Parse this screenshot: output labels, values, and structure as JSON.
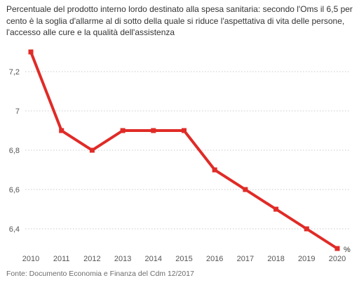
{
  "chart_data": {
    "type": "line",
    "title": "Percentuale del prodotto interno lordo destinato alla spesa sanitaria: secondo l'Oms il 6,5 per cento è la soglia d'allarme al di sotto della quale si riduce l'aspettativa di vita delle persone, l'accesso alle cure e la qualità dell'assistenza",
    "source": "Fonte: Documento Economia e Finanza del Cdm 12/2017",
    "unit_label": "%",
    "x": [
      2010,
      2011,
      2012,
      2013,
      2014,
      2015,
      2016,
      2017,
      2018,
      2019,
      2020
    ],
    "x_tick_labels": [
      "2010",
      "2011",
      "2012",
      "2013",
      "2014",
      "2015",
      "2016",
      "2017",
      "2018",
      "2019",
      "2020"
    ],
    "series": [
      {
        "values": [
          7.3,
          6.9,
          6.8,
          6.9,
          6.9,
          6.9,
          6.7,
          6.6,
          6.5,
          6.4,
          6.3
        ]
      }
    ],
    "y_ticks": [
      6.4,
      6.6,
      6.8,
      7.0,
      7.2
    ],
    "y_tick_labels": [
      "6,4",
      "6,6",
      "6,8",
      "7",
      "7,2"
    ],
    "ylim": [
      6.3,
      7.3
    ],
    "grid": "horizontal dotted",
    "line_color": "#e02b27"
  }
}
